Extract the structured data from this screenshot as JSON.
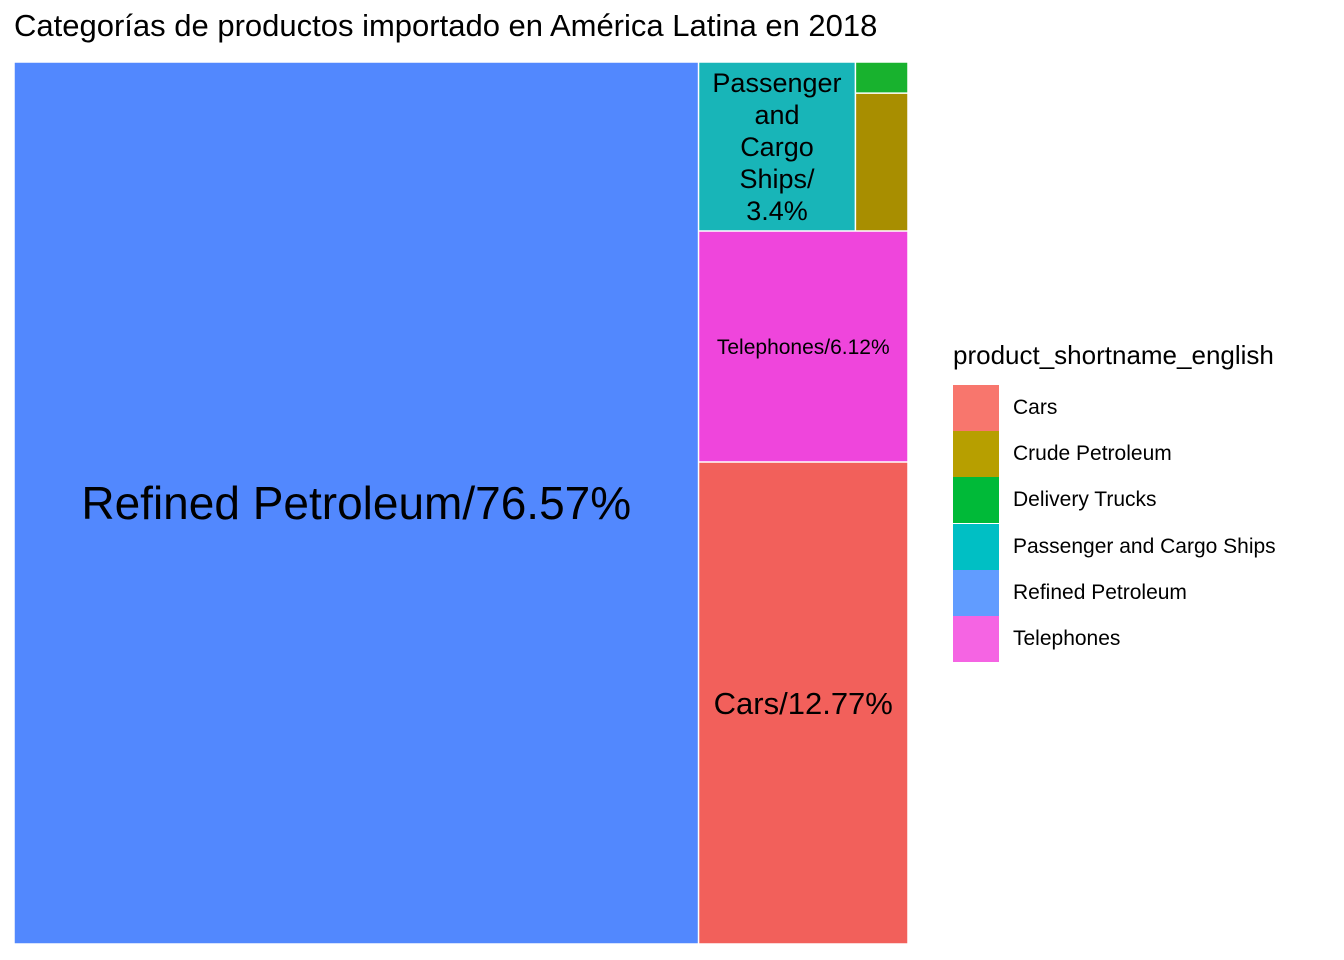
{
  "chart_data": {
    "type": "treemap",
    "title": "Categorías de productos importado en América Latina en 2018",
    "legend": {
      "title": "product_shortname_english",
      "position": "right",
      "entries": [
        {
          "name": "Cars",
          "color": "#F8766D"
        },
        {
          "name": "Crude Petroleum",
          "color": "#B79F00"
        },
        {
          "name": "Delivery Trucks",
          "color": "#00BA38"
        },
        {
          "name": "Passenger and Cargo Ships",
          "color": "#00BFC4"
        },
        {
          "name": "Refined Petroleum",
          "color": "#619CFF"
        },
        {
          "name": "Telephones",
          "color": "#F564E3"
        }
      ]
    },
    "tiles": [
      {
        "name": "Refined Petroleum",
        "share": 76.57,
        "label": "Refined Petroleum/76.57%",
        "color": "#5288FE"
      },
      {
        "name": "Cars",
        "share": 12.77,
        "label": "Cars/12.77%",
        "color": "#F2605B"
      },
      {
        "name": "Telephones",
        "share": 6.12,
        "label": "Telephones/6.12%",
        "color": "#EF45DC"
      },
      {
        "name": "Passenger and Cargo Ships",
        "share": 3.4,
        "label": "Passenger and Cargo Ships/ 3.4%",
        "color": "#18B5B8"
      },
      {
        "name": "Crude Petroleum",
        "share": 0.93,
        "label": "",
        "color": "#A88E00"
      },
      {
        "name": "Delivery Trucks",
        "share": 0.21,
        "label": "",
        "color": "#18B22E"
      }
    ]
  }
}
